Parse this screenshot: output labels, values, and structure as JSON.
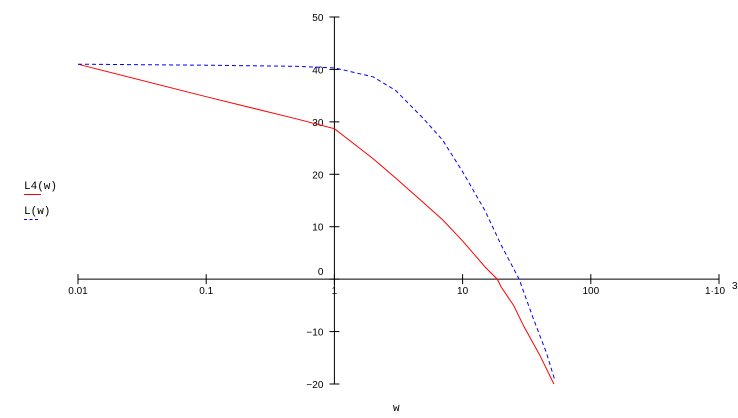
{
  "chart_data": {
    "type": "line",
    "title": "",
    "xlabel": "w",
    "ylabel": "",
    "xscale": "log",
    "xlim": [
      0.01,
      1000
    ],
    "ylim": [
      -20,
      50
    ],
    "xticks": [
      0.01,
      0.1,
      1,
      10,
      100,
      1000
    ],
    "xtick_labels": [
      "0.01",
      "0.1",
      "1",
      "10",
      "100",
      "1·10"
    ],
    "xtick_exponent": "3",
    "yticks": [
      -20,
      -10,
      0,
      10,
      20,
      30,
      40,
      50
    ],
    "ytick_labels": [
      "−20",
      "−10",
      "0",
      "10",
      "20",
      "30",
      "40",
      "50"
    ],
    "legend_placement": "left",
    "series": [
      {
        "name": "L4(w)",
        "color": "#ff0000",
        "style": "solid",
        "x": [
          0.01,
          0.1,
          0.5,
          1,
          2,
          3,
          5,
          7,
          10,
          15,
          18.6,
          20,
          25,
          30,
          40,
          51.5
        ],
        "y": [
          41,
          34.8,
          30.6,
          28.7,
          23,
          19.3,
          14.5,
          11.3,
          7.3,
          2.3,
          0,
          -1.5,
          -5,
          -9,
          -14.5,
          -20
        ]
      },
      {
        "name": "L(w)",
        "color": "#0000ff",
        "style": "dashed",
        "x": [
          0.01,
          0.1,
          0.5,
          1,
          2,
          3,
          5,
          7,
          10,
          15,
          20,
          27.6,
          35,
          45,
          52
        ],
        "y": [
          41,
          40.8,
          40.6,
          40.3,
          38.6,
          36,
          30.5,
          26.5,
          20.5,
          13,
          6.5,
          0,
          -7,
          -14,
          -19
        ]
      }
    ]
  }
}
